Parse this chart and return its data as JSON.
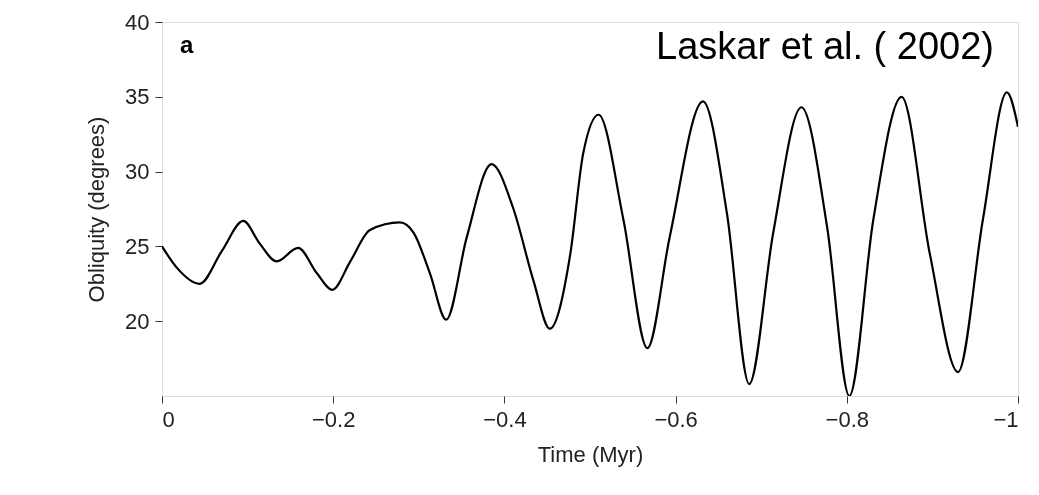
{
  "chart_data": {
    "type": "line",
    "xlabel": "Time (Myr)",
    "ylabel": "Obliquity (degrees)",
    "annotations": [
      "a",
      "Laskar et al. ( 2002)"
    ],
    "xlim": [
      0,
      -1
    ],
    "xticks": [
      0,
      {
        "value": -0.2,
        "label": "−0.2"
      },
      {
        "value": -0.4,
        "label": "−0.4"
      },
      {
        "value": -0.6,
        "label": "−0.6"
      },
      {
        "value": -0.8,
        "label": "−0.8"
      },
      {
        "value": -1,
        "label": "−1"
      }
    ],
    "ylim": [
      15,
      40
    ],
    "yticks": [
      20,
      25,
      30,
      35,
      40
    ],
    "grid": false,
    "marker": "none",
    "line_style": "solid",
    "series": [
      {
        "color": "#000000",
        "x": [
          0,
          -0.017,
          -0.044,
          -0.07,
          -0.095,
          -0.114,
          -0.134,
          -0.159,
          -0.181,
          -0.199,
          -0.22,
          -0.243,
          -0.278,
          -0.294,
          -0.313,
          -0.332,
          -0.356,
          -0.385,
          -0.41,
          -0.434,
          -0.453,
          -0.477,
          -0.492,
          -0.51,
          -0.539,
          -0.567,
          -0.593,
          -0.632,
          -0.66,
          -0.686,
          -0.714,
          -0.747,
          -0.777,
          -0.803,
          -0.831,
          -0.864,
          -0.897,
          -0.93,
          -0.959,
          -0.987,
          -1
        ],
        "values": [
          25,
          23.6,
          22.5,
          24.7,
          26.7,
          25.2,
          24,
          24.9,
          23.2,
          22.1,
          24,
          26.1,
          26.6,
          25.9,
          23.2,
          20.1,
          25.6,
          30.5,
          27.6,
          22.7,
          19.5,
          24.5,
          31.2,
          33.8,
          26.8,
          18.2,
          25.6,
          34.7,
          27.2,
          15.8,
          25.9,
          34.3,
          26.3,
          15,
          26.8,
          35,
          24.5,
          16.6,
          26.8,
          35.3,
          33
        ]
      }
    ]
  }
}
